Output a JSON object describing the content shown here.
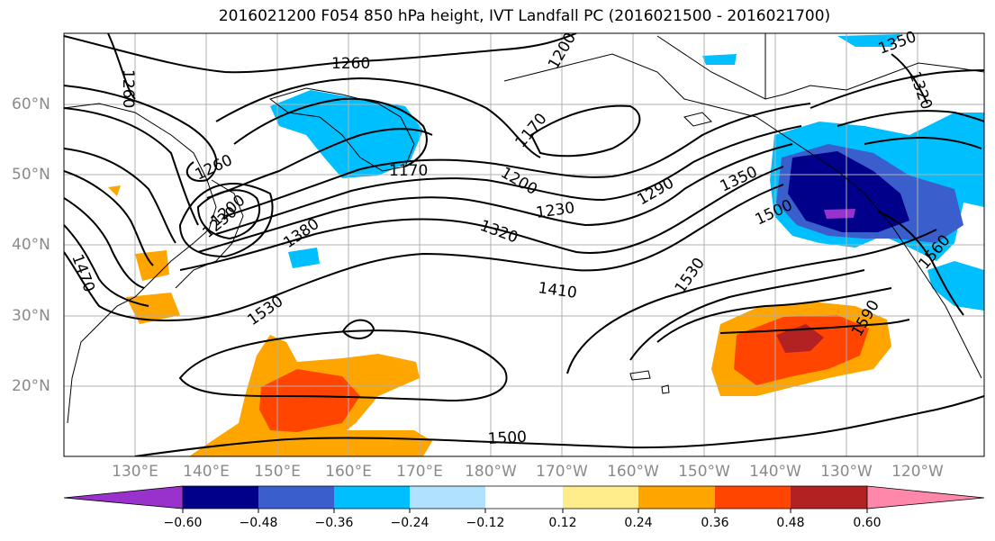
{
  "title": "2016021200 F054 850 hPa height, IVT Landfall PC (2016021500 - 2016021700)",
  "lat_labels": [
    "20°N",
    "30°N",
    "40°N",
    "50°N",
    "60°N"
  ],
  "lon_labels": [
    "130°E",
    "140°E",
    "150°E",
    "160°E",
    "170°E",
    "180°W",
    "170°W",
    "160°W",
    "150°W",
    "140°W",
    "130°W",
    "120°W"
  ],
  "colorbar": {
    "ticks": [
      "−0.60",
      "−0.48",
      "−0.36",
      "−0.24",
      "−0.12",
      "0.12",
      "0.24",
      "0.36",
      "0.48",
      "0.60"
    ],
    "colors": [
      "#9932cc",
      "#00008b",
      "#3a5fcd",
      "#00bfff",
      "#b0e2ff",
      "#ffffff",
      "#ffec8b",
      "#ffa500",
      "#ff4500",
      "#b22222",
      "#ff88aa"
    ]
  },
  "contour_labels": [
    "1260",
    "1260",
    "1200",
    "1350",
    "1320",
    "1260",
    "1170",
    "1170",
    "1200",
    "1290",
    "1350",
    "1230",
    "1320",
    "1380",
    "1500",
    "1470",
    "1410",
    "1530",
    "1530",
    "1590",
    "1560",
    "1500",
    "1230",
    "1200"
  ]
}
